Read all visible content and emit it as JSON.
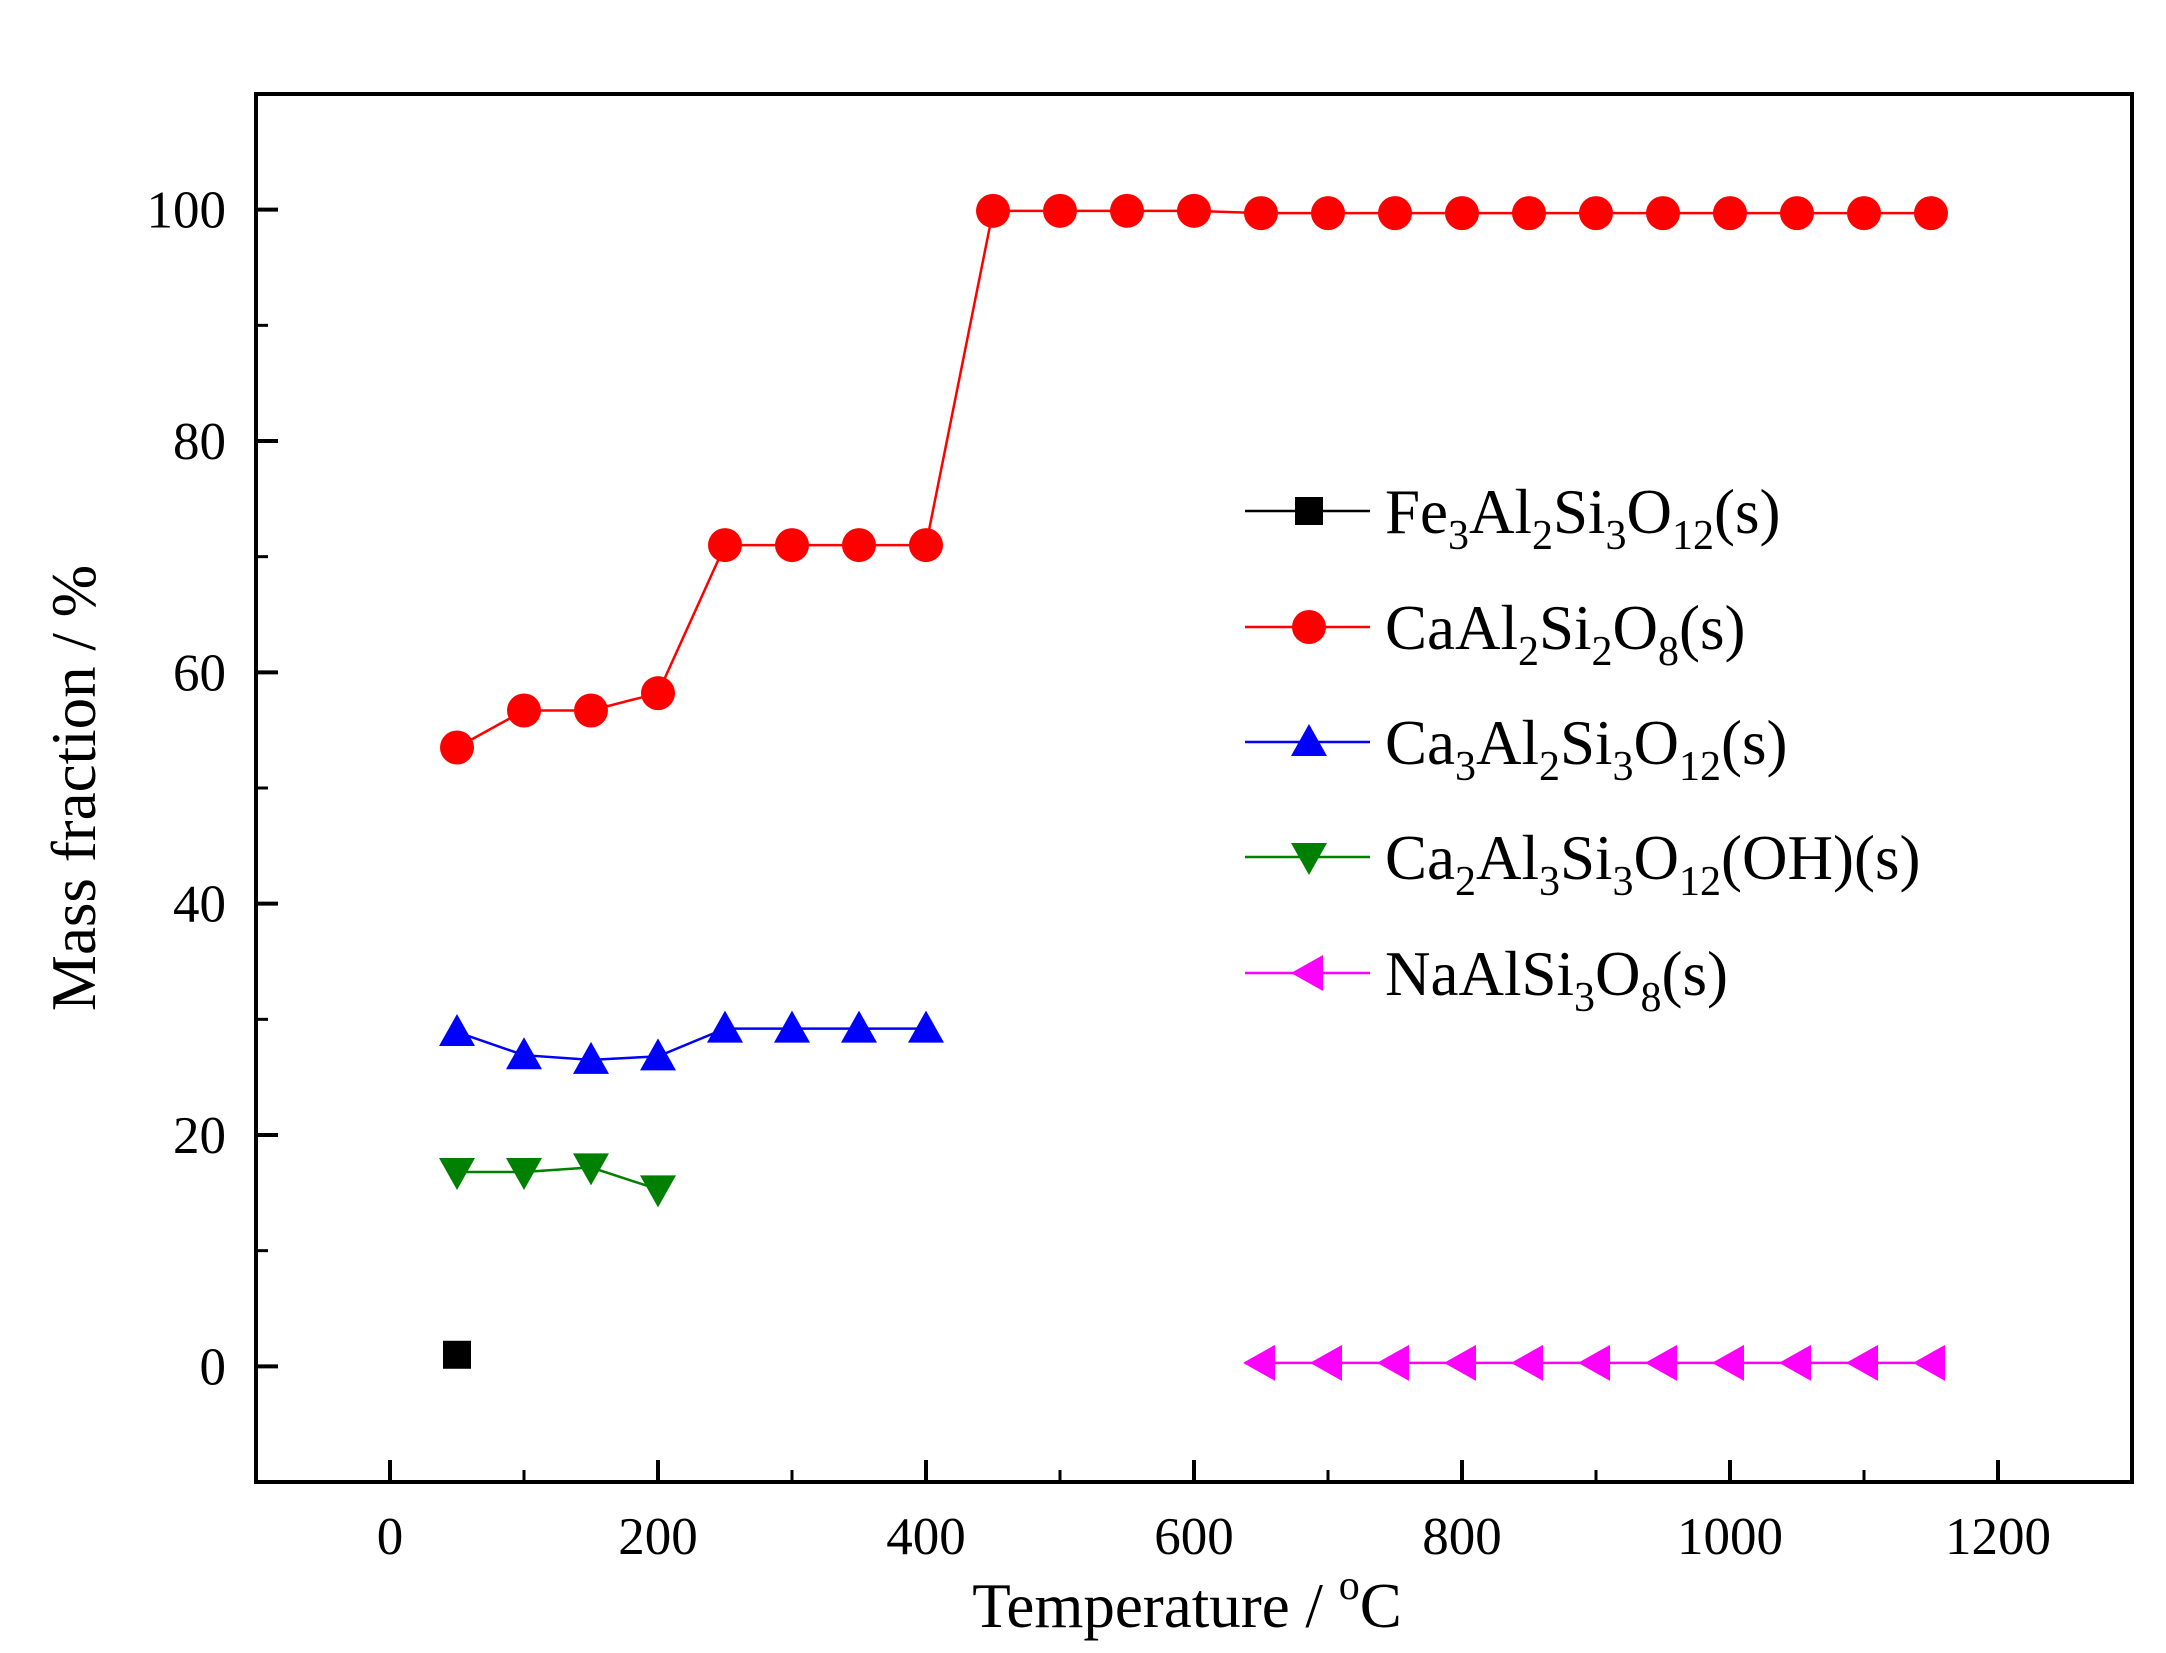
{
  "chart_data": {
    "type": "line",
    "title": "",
    "xlabel": "Temperature / °C",
    "xlabel_parts": {
      "text": "Temperature / ",
      "sup": "o",
      "unit": "C"
    },
    "ylabel": "Mass fraction / %",
    "xlim": [
      -100,
      1300
    ],
    "ylim": [
      -10,
      110
    ],
    "x_ticks": [
      0,
      200,
      400,
      600,
      800,
      1000,
      1200
    ],
    "y_ticks": [
      0,
      20,
      40,
      60,
      80,
      100
    ],
    "legend_position": "center-right",
    "series": [
      {
        "name": "Fe3Al2Si3O12(s)",
        "label_parts": [
          [
            "Fe",
            ""
          ],
          [
            "3",
            "sub"
          ],
          [
            "Al",
            ""
          ],
          [
            "2",
            "sub"
          ],
          [
            "Si",
            ""
          ],
          [
            "3",
            "sub"
          ],
          [
            "O",
            ""
          ],
          [
            "12",
            "sub"
          ],
          [
            "(s)",
            ""
          ]
        ],
        "color": "#000000",
        "marker": "square",
        "x": [
          50
        ],
        "y": [
          1.0
        ]
      },
      {
        "name": "CaAl2Si2O8(s)",
        "label_parts": [
          [
            "CaAl",
            ""
          ],
          [
            "2",
            "sub"
          ],
          [
            "Si",
            ""
          ],
          [
            "2",
            "sub"
          ],
          [
            "O",
            ""
          ],
          [
            "8",
            "sub"
          ],
          [
            "(s)",
            ""
          ]
        ],
        "color": "#ff0000",
        "marker": "circle",
        "x": [
          50,
          100,
          150,
          200,
          250,
          300,
          350,
          400,
          450,
          500,
          550,
          600,
          650,
          700,
          750,
          800,
          850,
          900,
          950,
          1000,
          1050,
          1100,
          1150
        ],
        "y": [
          53.5,
          56.7,
          56.7,
          58.2,
          71.0,
          71.0,
          71.0,
          71.0,
          99.9,
          99.9,
          99.9,
          99.9,
          99.7,
          99.7,
          99.7,
          99.7,
          99.7,
          99.7,
          99.7,
          99.7,
          99.7,
          99.7,
          99.7
        ]
      },
      {
        "name": "Ca3Al2Si3O12(s)",
        "label_parts": [
          [
            "Ca",
            ""
          ],
          [
            "3",
            "sub"
          ],
          [
            "Al",
            ""
          ],
          [
            "2",
            "sub"
          ],
          [
            "Si",
            ""
          ],
          [
            "3",
            "sub"
          ],
          [
            "O",
            ""
          ],
          [
            "12",
            "sub"
          ],
          [
            "(s)",
            ""
          ]
        ],
        "color": "#0000ff",
        "marker": "triangle-up",
        "x": [
          50,
          100,
          150,
          200,
          250,
          300,
          350,
          400
        ],
        "y": [
          28.9,
          26.9,
          26.5,
          26.8,
          29.2,
          29.2,
          29.2,
          29.2
        ]
      },
      {
        "name": "Ca2Al3Si3O12(OH)(s)",
        "label_parts": [
          [
            "Ca",
            ""
          ],
          [
            "2",
            "sub"
          ],
          [
            "Al",
            ""
          ],
          [
            "3",
            "sub"
          ],
          [
            "Si",
            ""
          ],
          [
            "3",
            "sub"
          ],
          [
            "O",
            ""
          ],
          [
            "12",
            "sub"
          ],
          [
            "(OH)(s)",
            ""
          ]
        ],
        "color": "#008000",
        "marker": "triangle-down",
        "x": [
          50,
          100,
          150,
          200
        ],
        "y": [
          16.8,
          16.8,
          17.2,
          15.3
        ]
      },
      {
        "name": "NaAlSi3O8(s)",
        "label_parts": [
          [
            "NaAlSi",
            ""
          ],
          [
            "3",
            "sub"
          ],
          [
            "O",
            ""
          ],
          [
            "8",
            "sub"
          ],
          [
            "(s)",
            ""
          ]
        ],
        "color": "#ff00ff",
        "marker": "triangle-left",
        "x": [
          650,
          700,
          750,
          800,
          850,
          900,
          950,
          1000,
          1050,
          1100,
          1150
        ],
        "y": [
          0.3,
          0.3,
          0.3,
          0.3,
          0.3,
          0.3,
          0.3,
          0.3,
          0.3,
          0.3,
          0.3
        ]
      }
    ]
  }
}
